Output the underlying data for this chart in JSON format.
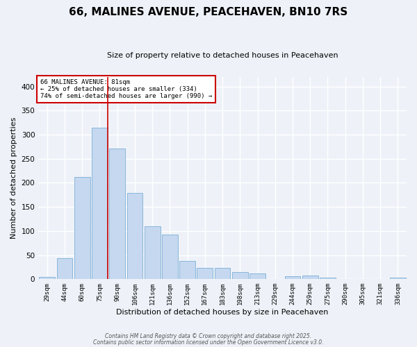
{
  "title": "66, MALINES AVENUE, PEACEHAVEN, BN10 7RS",
  "subtitle": "Size of property relative to detached houses in Peacehaven",
  "xlabel": "Distribution of detached houses by size in Peacehaven",
  "ylabel": "Number of detached properties",
  "categories": [
    "29sqm",
    "44sqm",
    "60sqm",
    "75sqm",
    "90sqm",
    "106sqm",
    "121sqm",
    "136sqm",
    "152sqm",
    "167sqm",
    "183sqm",
    "198sqm",
    "213sqm",
    "229sqm",
    "244sqm",
    "259sqm",
    "275sqm",
    "290sqm",
    "305sqm",
    "321sqm",
    "336sqm"
  ],
  "values": [
    5,
    44,
    212,
    315,
    272,
    179,
    110,
    92,
    38,
    23,
    24,
    15,
    12,
    0,
    6,
    7,
    3,
    0,
    0,
    0,
    3
  ],
  "bar_color": "#c5d8f0",
  "bar_edge_color": "#7bafd4",
  "red_line_index": 3,
  "annotation_title": "66 MALINES AVENUE: 81sqm",
  "annotation_line1": "← 25% of detached houses are smaller (334)",
  "annotation_line2": "74% of semi-detached houses are larger (990) →",
  "footer1": "Contains HM Land Registry data © Crown copyright and database right 2025.",
  "footer2": "Contains public sector information licensed under the Open Government Licence v3.0.",
  "ylim": [
    0,
    420
  ],
  "bg_color": "#eef2f8",
  "grid_color": "#ffffff",
  "title_fontsize": 11,
  "subtitle_fontsize": 8,
  "annotation_box_color": "#ffffff",
  "annotation_box_edge": "#cc0000"
}
